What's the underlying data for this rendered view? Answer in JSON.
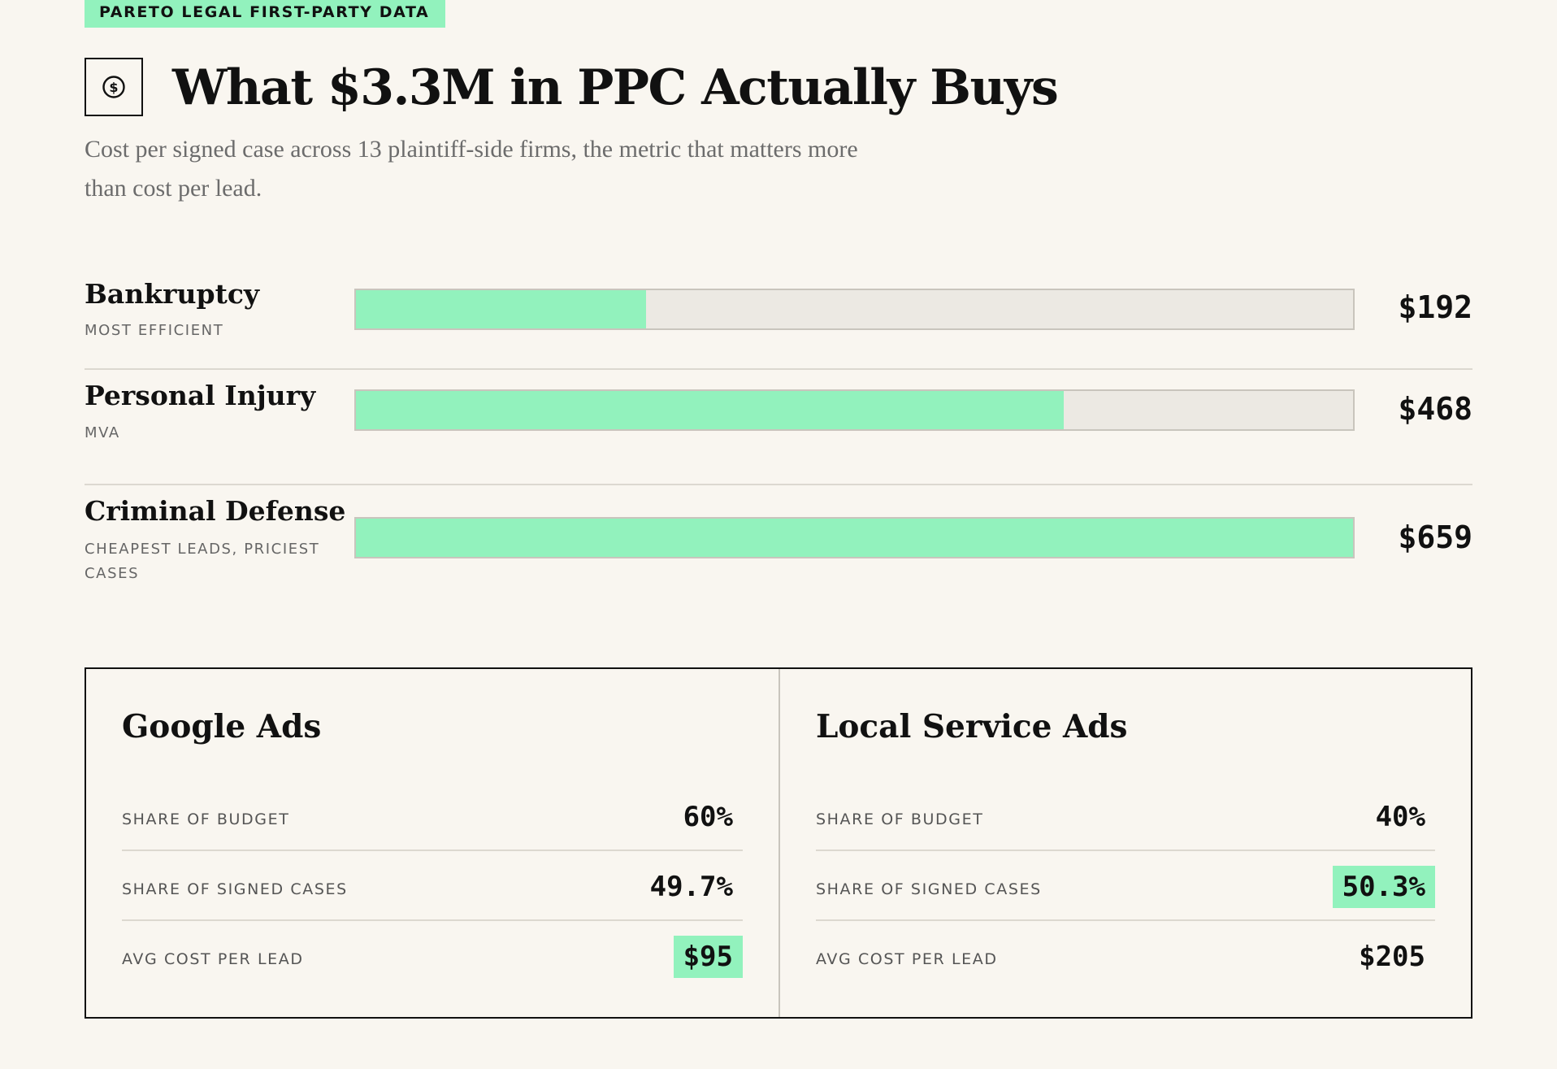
{
  "tag": "PARETO LEGAL FIRST-PARTY DATA",
  "title": "What $3.3M in PPC Actually Buys",
  "subtitle": "Cost per signed case across 13 plaintiff-side firms, the metric that matters more than cost per lead.",
  "colors": {
    "accent": "#92f2bd",
    "background": "#f9f6f0",
    "text": "#111111",
    "muted": "#6c6c6c"
  },
  "header_icon": "dollar-circle-icon",
  "rows": [
    {
      "name": "Bankruptcy",
      "note": "MOST EFFICIENT",
      "value": "$192",
      "amount": 192
    },
    {
      "name": "Personal Injury",
      "note": "MVA",
      "value": "$468",
      "amount": 468
    },
    {
      "name": "Criminal Defense",
      "note": "CHEAPEST LEADS, PRICIEST CASES",
      "value": "$659",
      "amount": 659
    }
  ],
  "panels": [
    {
      "title": "Google Ads",
      "metrics": [
        {
          "label": "SHARE OF BUDGET",
          "value": "60%",
          "highlight": false
        },
        {
          "label": "SHARE OF SIGNED CASES",
          "value": "49.7%",
          "highlight": false
        },
        {
          "label": "AVG COST PER LEAD",
          "value": "$95",
          "highlight": true
        }
      ]
    },
    {
      "title": "Local Service Ads",
      "metrics": [
        {
          "label": "SHARE OF BUDGET",
          "value": "40%",
          "highlight": false
        },
        {
          "label": "SHARE OF SIGNED CASES",
          "value": "50.3%",
          "highlight": true
        },
        {
          "label": "AVG COST PER LEAD",
          "value": "$205",
          "highlight": false
        }
      ]
    }
  ]
}
